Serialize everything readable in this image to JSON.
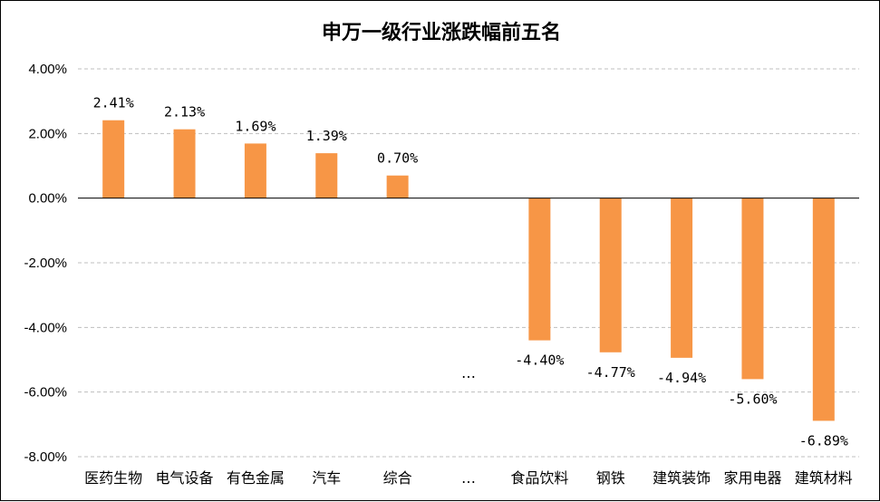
{
  "chart_data": {
    "type": "bar",
    "title": "申万一级行业涨跌幅前五名",
    "categories": [
      "医药生物",
      "电气设备",
      "有色金属",
      "汽车",
      "综合",
      "…",
      "食品饮料",
      "钢铁",
      "建筑装饰",
      "家用电器",
      "建筑材料"
    ],
    "values": [
      2.41,
      2.13,
      1.69,
      1.39,
      0.7,
      null,
      -4.4,
      -4.77,
      -4.94,
      -5.6,
      -6.89
    ],
    "data_labels": [
      "2.41%",
      "2.13%",
      "1.69%",
      "1.39%",
      "0.70%",
      "…",
      "-4.40%",
      "-4.77%",
      "-4.94%",
      "-5.60%",
      "-6.89%"
    ],
    "yticks": [
      4,
      2,
      0,
      -2,
      -4,
      -6,
      -8
    ],
    "ytick_labels": [
      "4.00%",
      "2.00%",
      "0.00%",
      "-2.00%",
      "-4.00%",
      "-6.00%",
      "-8.00%"
    ],
    "ylim": [
      -8,
      4
    ],
    "xlabel": "",
    "ylabel": "",
    "grid": true,
    "bar_color": "#F79646",
    "grid_color": "#BFBFBF"
  }
}
